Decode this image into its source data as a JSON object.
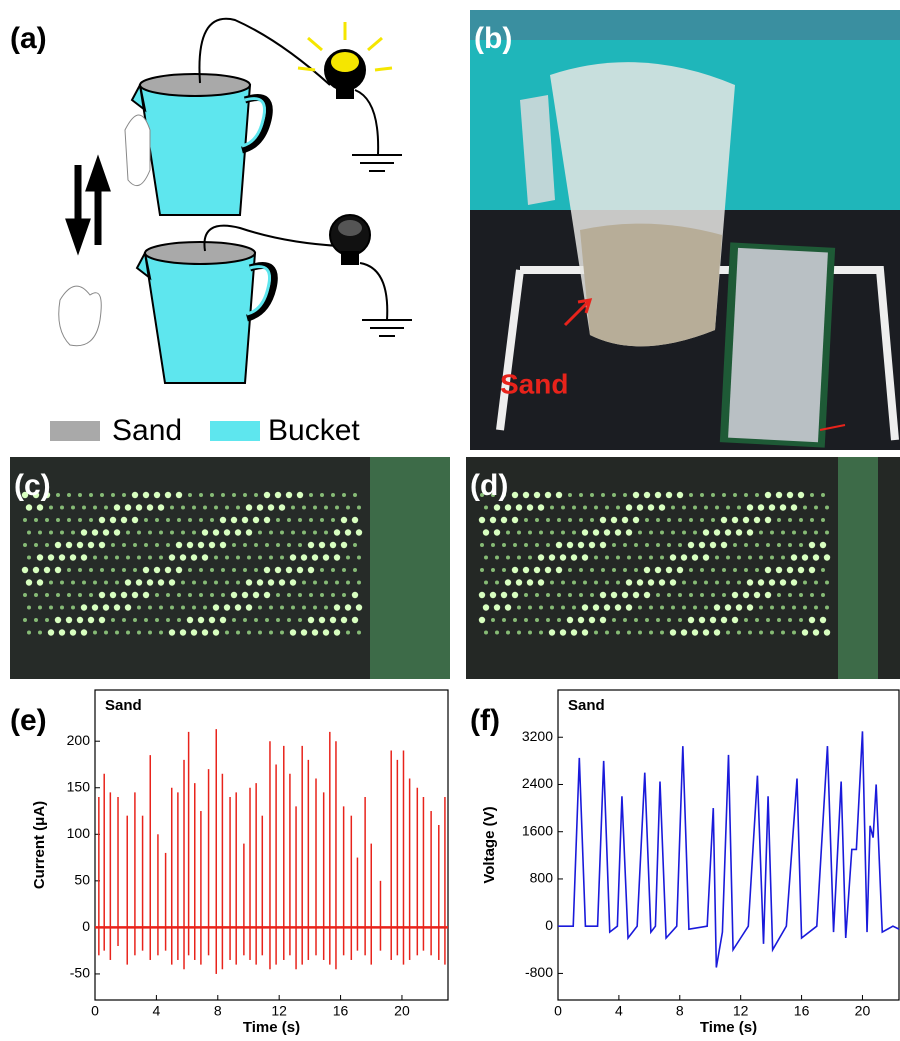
{
  "panels": {
    "a": {
      "label": "(a)",
      "legend": [
        "Sand",
        "Bucket"
      ]
    },
    "b": {
      "label": "(b)",
      "annotation": "Sand"
    },
    "c": {
      "label": "(c)"
    },
    "d": {
      "label": "(d)"
    },
    "e": {
      "label": "(e)"
    },
    "f": {
      "label": "(f)"
    }
  },
  "chart_data": [
    {
      "type": "stem",
      "annotation": "Sand",
      "xlabel": "Time (s)",
      "ylabel": "Current (μA)",
      "xlim": [
        0,
        23
      ],
      "ylim": [
        -78,
        255
      ],
      "xticks": [
        0,
        4,
        8,
        12,
        16,
        20
      ],
      "yticks": [
        -50,
        0,
        50,
        100,
        150,
        200
      ],
      "x": [
        0.25,
        0.6,
        1.0,
        1.5,
        2.1,
        2.6,
        3.1,
        3.6,
        4.1,
        4.6,
        5.0,
        5.4,
        5.8,
        6.1,
        6.5,
        6.9,
        7.4,
        7.9,
        8.3,
        8.8,
        9.2,
        9.7,
        10.1,
        10.5,
        10.9,
        11.4,
        11.8,
        12.3,
        12.7,
        13.1,
        13.5,
        13.9,
        14.4,
        14.9,
        15.3,
        15.7,
        16.2,
        16.7,
        17.1,
        17.6,
        18.0,
        18.6,
        19.3,
        19.7,
        20.1,
        20.5,
        21.0,
        21.4,
        21.9,
        22.4,
        22.8
      ],
      "series": [
        {
          "color": "#e8231b",
          "values": [
            140,
            165,
            145,
            140,
            120,
            145,
            120,
            185,
            100,
            80,
            150,
            145,
            180,
            210,
            155,
            125,
            170,
            213,
            165,
            140,
            145,
            90,
            150,
            155,
            120,
            200,
            175,
            195,
            165,
            130,
            195,
            180,
            160,
            145,
            210,
            200,
            130,
            120,
            75,
            140,
            90,
            50,
            190,
            180,
            190,
            160,
            150,
            140,
            125,
            110,
            140
          ]
        },
        {
          "color": "#e8231b",
          "values": [
            -30,
            -25,
            -35,
            -20,
            -40,
            -30,
            -25,
            -35,
            -30,
            -25,
            -40,
            -35,
            -45,
            -30,
            -35,
            -40,
            -30,
            -50,
            -45,
            -35,
            -40,
            -30,
            -35,
            -40,
            -30,
            -45,
            -40,
            -35,
            -30,
            -45,
            -40,
            -35,
            -30,
            -35,
            -40,
            -45,
            -30,
            -35,
            -25,
            -30,
            -40,
            -25,
            -35,
            -30,
            -40,
            -35,
            -30,
            -25,
            -30,
            -35,
            -40
          ]
        }
      ]
    },
    {
      "type": "line",
      "annotation": "Sand",
      "xlabel": "Time (s)",
      "ylabel": "Voltage (V)",
      "xlim": [
        0,
        22.4
      ],
      "ylim": [
        -1250,
        4000
      ],
      "xticks": [
        0,
        4,
        8,
        12,
        16,
        20
      ],
      "yticks": [
        -800,
        0,
        800,
        1600,
        2400,
        3200
      ],
      "x": [
        0,
        1,
        1.4,
        1.8,
        2.6,
        3.0,
        3.4,
        3.9,
        4.2,
        4.6,
        5.2,
        5.7,
        6.1,
        6.4,
        6.7,
        7.1,
        7.8,
        8.2,
        8.6,
        9.8,
        10.2,
        10.4,
        10.8,
        11.2,
        11.5,
        12,
        12.5,
        13.1,
        13.5,
        13.8,
        14.1,
        15,
        15.7,
        16,
        17,
        17.7,
        18.1,
        18.6,
        18.9,
        19.3,
        19.6,
        20.0,
        20.3,
        20.5,
        20.7,
        20.9,
        21.3,
        22,
        22.4
      ],
      "series": [
        {
          "color": "#1a1adb",
          "values": [
            0,
            0,
            2850,
            0,
            0,
            2800,
            -100,
            0,
            2200,
            -200,
            0,
            2600,
            -100,
            0,
            2450,
            -200,
            0,
            3050,
            -50,
            0,
            2000,
            -700,
            -100,
            2900,
            -400,
            -200,
            0,
            2550,
            -300,
            2200,
            -400,
            0,
            2500,
            -200,
            0,
            3050,
            -100,
            2450,
            -200,
            1300,
            1300,
            3300,
            -100,
            1700,
            1500,
            2400,
            -100,
            0,
            -50
          ]
        }
      ]
    }
  ]
}
